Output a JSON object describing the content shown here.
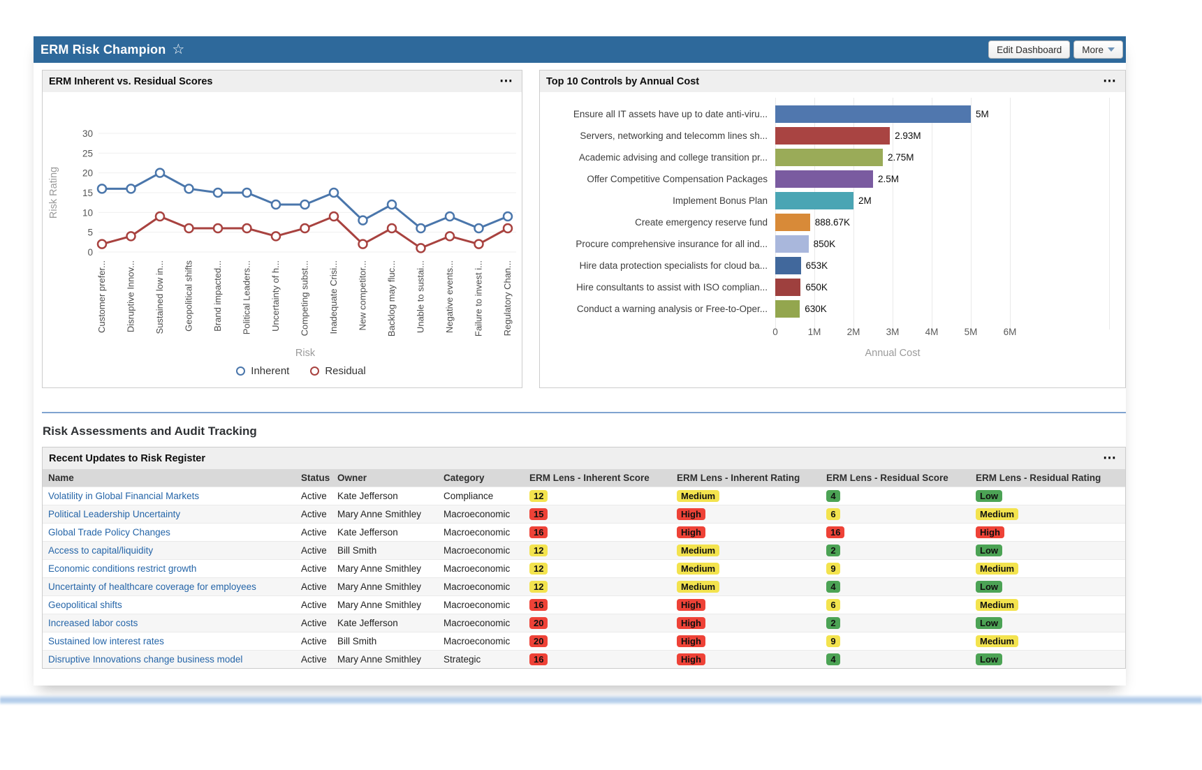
{
  "app": {
    "title": "ERM Risk Champion",
    "actions": {
      "edit": "Edit Dashboard",
      "more": "More"
    }
  },
  "section": {
    "title": "Risk Assessments and Audit Tracking"
  },
  "chart_data": [
    {
      "type": "line",
      "title": "ERM Inherent vs. Residual Scores",
      "xlabel": "Risk",
      "ylabel": "Risk Rating",
      "ylim": [
        0,
        30
      ],
      "yticks": [
        0,
        5,
        10,
        15,
        20,
        25,
        30
      ],
      "grid": true,
      "legend_position": "bottom",
      "categories": [
        "Customer prefer...",
        "Disruptive Innov...",
        "Sustained low in...",
        "Geopolitical shifts",
        "Brand impacted...",
        "Political Leaders...",
        "Uncertainty of h...",
        "Competing subst...",
        "Inadequate Crisi...",
        "New competitor...",
        "Backlog may fluc...",
        "Unable to sustai...",
        "Negative events...",
        "Failure to invest i...",
        "Regulatory Chan..."
      ],
      "series": [
        {
          "name": "Inherent",
          "color": "#4a76ab",
          "values": [
            16,
            16,
            20,
            16,
            15,
            15,
            12,
            12,
            15,
            8,
            12,
            6,
            9,
            6,
            9
          ]
        },
        {
          "name": "Residual",
          "color": "#a8423f",
          "values": [
            2,
            4,
            9,
            6,
            6,
            6,
            4,
            6,
            9,
            2,
            6,
            1,
            4,
            2,
            6
          ]
        }
      ]
    },
    {
      "type": "bar",
      "orientation": "horizontal",
      "title": "Top 10 Controls by Annual Cost",
      "xlabel": "Annual Cost",
      "xlim": [
        0,
        6000000
      ],
      "xtick_labels": [
        "0",
        "1M",
        "2M",
        "3M",
        "4M",
        "5M",
        "6M"
      ],
      "categories": [
        "Ensure all IT assets have up to date anti-viru...",
        "Servers, networking and telecomm lines sh...",
        "Academic advising and college transition pr...",
        "Offer Competitive Compensation Packages",
        "Implement Bonus Plan",
        "Create emergency reserve fund",
        "Procure comprehensive insurance for all ind...",
        "Hire data protection specialists for cloud ba...",
        "Hire consultants to assist with ISO complian...",
        "Conduct a warning analysis or Free-to-Oper..."
      ],
      "values": [
        5000000,
        2930000,
        2750000,
        2500000,
        2000000,
        888670,
        850000,
        653000,
        650000,
        630000
      ],
      "value_labels": [
        "5M",
        "2.93M",
        "2.75M",
        "2.5M",
        "2M",
        "888.67K",
        "850K",
        "653K",
        "650K",
        "630K"
      ],
      "bar_colors": [
        "#5077ae",
        "#a94442",
        "#9aab58",
        "#7a5ba0",
        "#4aa5b4",
        "#d88a38",
        "#a9b7dc",
        "#41689c",
        "#9e403e",
        "#93a64e"
      ]
    }
  ],
  "risk_table": {
    "title": "Recent Updates to Risk Register",
    "columns": [
      "Name",
      "Status",
      "Owner",
      "Category",
      "ERM Lens - Inherent Score",
      "ERM Lens - Inherent Rating",
      "ERM Lens - Residual Score",
      "ERM Lens - Residual Rating"
    ],
    "badge_colors": {
      "yellow": "#f3e34e",
      "red": "#ee4237",
      "green": "#4ca355"
    },
    "rows": [
      {
        "name": "Volatility in Global Financial Markets",
        "status": "Active",
        "owner": "Kate Jefferson",
        "category": "Compliance",
        "inherent_score": "12",
        "inherent_score_color": "yellow",
        "inherent_rating": "Medium",
        "inherent_rating_color": "yellow",
        "residual_score": "4",
        "residual_score_color": "green",
        "residual_rating": "Low",
        "residual_rating_color": "green"
      },
      {
        "name": "Political Leadership Uncertainty",
        "status": "Active",
        "owner": "Mary Anne Smithley",
        "category": "Macroeconomic",
        "inherent_score": "15",
        "inherent_score_color": "red",
        "inherent_rating": "High",
        "inherent_rating_color": "red",
        "residual_score": "6",
        "residual_score_color": "yellow",
        "residual_rating": "Medium",
        "residual_rating_color": "yellow"
      },
      {
        "name": "Global Trade Policy Changes",
        "status": "Active",
        "owner": "Kate Jefferson",
        "category": "Macroeconomic",
        "inherent_score": "16",
        "inherent_score_color": "red",
        "inherent_rating": "High",
        "inherent_rating_color": "red",
        "residual_score": "16",
        "residual_score_color": "red",
        "residual_rating": "High",
        "residual_rating_color": "red"
      },
      {
        "name": "Access to capital/liquidity",
        "status": "Active",
        "owner": "Bill Smith",
        "category": "Macroeconomic",
        "inherent_score": "12",
        "inherent_score_color": "yellow",
        "inherent_rating": "Medium",
        "inherent_rating_color": "yellow",
        "residual_score": "2",
        "residual_score_color": "green",
        "residual_rating": "Low",
        "residual_rating_color": "green"
      },
      {
        "name": "Economic conditions restrict growth",
        "status": "Active",
        "owner": "Mary Anne Smithley",
        "category": "Macroeconomic",
        "inherent_score": "12",
        "inherent_score_color": "yellow",
        "inherent_rating": "Medium",
        "inherent_rating_color": "yellow",
        "residual_score": "9",
        "residual_score_color": "yellow",
        "residual_rating": "Medium",
        "residual_rating_color": "yellow"
      },
      {
        "name": "Uncertainty of healthcare coverage for employees",
        "status": "Active",
        "owner": "Mary Anne Smithley",
        "category": "Macroeconomic",
        "inherent_score": "12",
        "inherent_score_color": "yellow",
        "inherent_rating": "Medium",
        "inherent_rating_color": "yellow",
        "residual_score": "4",
        "residual_score_color": "green",
        "residual_rating": "Low",
        "residual_rating_color": "green"
      },
      {
        "name": "Geopolitical shifts",
        "status": "Active",
        "owner": "Mary Anne Smithley",
        "category": "Macroeconomic",
        "inherent_score": "16",
        "inherent_score_color": "red",
        "inherent_rating": "High",
        "inherent_rating_color": "red",
        "residual_score": "6",
        "residual_score_color": "yellow",
        "residual_rating": "Medium",
        "residual_rating_color": "yellow"
      },
      {
        "name": "Increased labor costs",
        "status": "Active",
        "owner": "Kate Jefferson",
        "category": "Macroeconomic",
        "inherent_score": "20",
        "inherent_score_color": "red",
        "inherent_rating": "High",
        "inherent_rating_color": "red",
        "residual_score": "2",
        "residual_score_color": "green",
        "residual_rating": "Low",
        "residual_rating_color": "green"
      },
      {
        "name": "Sustained low interest rates",
        "status": "Active",
        "owner": "Bill Smith",
        "category": "Macroeconomic",
        "inherent_score": "20",
        "inherent_score_color": "red",
        "inherent_rating": "High",
        "inherent_rating_color": "red",
        "residual_score": "9",
        "residual_score_color": "yellow",
        "residual_rating": "Medium",
        "residual_rating_color": "yellow"
      },
      {
        "name": "Disruptive Innovations change business model",
        "status": "Active",
        "owner": "Mary Anne Smithley",
        "category": "Strategic",
        "inherent_score": "16",
        "inherent_score_color": "red",
        "inherent_rating": "High",
        "inherent_rating_color": "red",
        "residual_score": "4",
        "residual_score_color": "green",
        "residual_rating": "Low",
        "residual_rating_color": "green"
      }
    ]
  },
  "colors": {
    "header_bar": "#2e699b",
    "divider": "#7fa3d0",
    "inherent_line": "#4a76ab",
    "residual_line": "#a8423f",
    "link": "#2565a8"
  }
}
